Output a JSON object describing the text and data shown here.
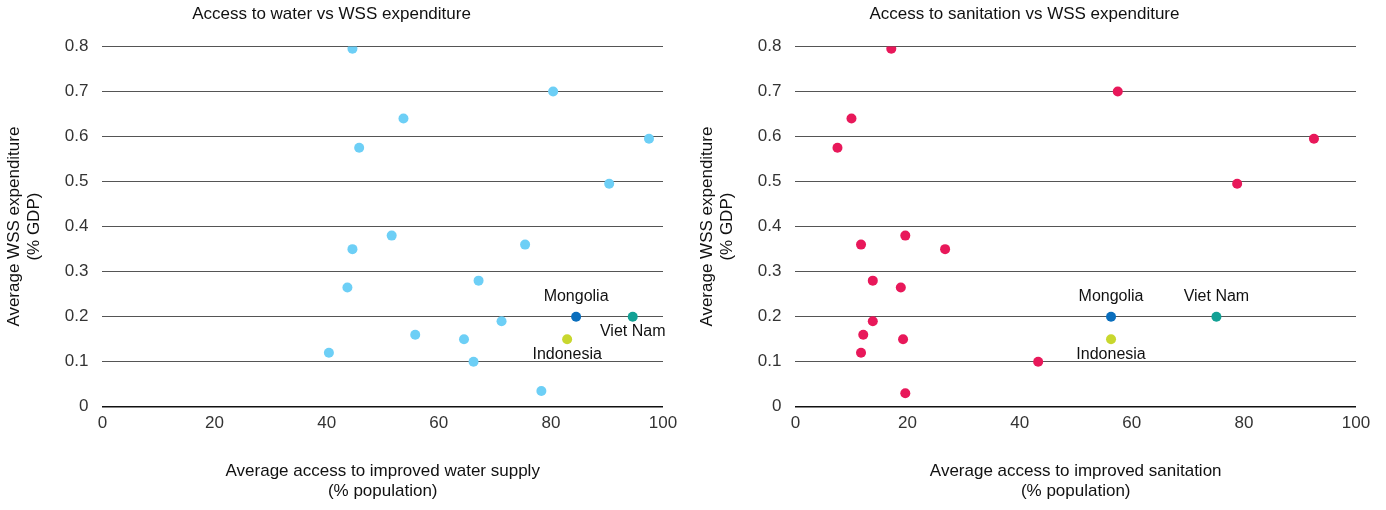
{
  "chart_data": [
    {
      "type": "scatter",
      "title": "Access to water vs WSS expenditure",
      "xlabel": "Average access to improved water supply\n(% population)",
      "ylabel": "Average WSS expenditure\n(% GDP)",
      "xlim": [
        0,
        100
      ],
      "xticks": [
        0,
        20,
        40,
        60,
        80,
        100
      ],
      "ylim": [
        0,
        0.8
      ],
      "yticks": [
        0,
        0.1,
        0.2,
        0.3,
        0.4,
        0.5,
        0.6,
        0.7,
        0.8
      ],
      "grid": "y",
      "legend": false,
      "marker": "circle",
      "series": [
        {
          "color": "#6dcff6",
          "x": [
            44.6,
            80.4,
            53.7,
            97.5,
            45.8,
            90.4,
            51.6,
            75.4,
            44.6,
            67.1,
            43.7,
            71.2,
            55.8,
            64.5,
            40.4,
            66.2,
            78.3
          ],
          "values": [
            0.795,
            0.7,
            0.64,
            0.595,
            0.575,
            0.495,
            0.38,
            0.36,
            0.35,
            0.28,
            0.265,
            0.19,
            0.16,
            0.15,
            0.12,
            0.1,
            0.035
          ]
        },
        {
          "name": "Mongolia",
          "color": "#0a6ebd",
          "x": [
            84.5
          ],
          "values": [
            0.2
          ]
        },
        {
          "name": "Viet Nam",
          "color": "#12a195",
          "x": [
            94.6
          ],
          "values": [
            0.2
          ]
        },
        {
          "name": "Indonesia",
          "color": "#c8d72e",
          "x": [
            82.9
          ],
          "values": [
            0.15
          ]
        }
      ]
    },
    {
      "type": "scatter",
      "title": "Access to sanitation vs WSS expenditure",
      "xlabel": "Average access to improved sanitation\n(% population)",
      "ylabel": "Average WSS expenditure\n(% GDP)",
      "xlim": [
        0,
        100
      ],
      "xticks": [
        0,
        20,
        40,
        60,
        80,
        100
      ],
      "ylim": [
        0,
        0.8
      ],
      "yticks": [
        0,
        0.1,
        0.2,
        0.3,
        0.4,
        0.5,
        0.6,
        0.7,
        0.8
      ],
      "grid": "y",
      "legend": false,
      "marker": "circle",
      "series": [
        {
          "color": "#e8185a",
          "x": [
            17.1,
            57.5,
            10.0,
            92.5,
            7.5,
            78.8,
            19.6,
            11.7,
            26.7,
            13.8,
            18.8,
            13.8,
            12.1,
            19.2,
            11.7,
            43.3,
            19.6
          ],
          "values": [
            0.795,
            0.7,
            0.64,
            0.595,
            0.575,
            0.495,
            0.38,
            0.36,
            0.35,
            0.28,
            0.265,
            0.19,
            0.16,
            0.15,
            0.12,
            0.1,
            0.03
          ]
        },
        {
          "name": "Mongolia",
          "color": "#0a6ebd",
          "x": [
            56.3
          ],
          "values": [
            0.2
          ]
        },
        {
          "name": "Viet Nam",
          "color": "#12a195",
          "x": [
            75.1
          ],
          "values": [
            0.2
          ]
        },
        {
          "name": "Indonesia",
          "color": "#c8d72e",
          "x": [
            56.3
          ],
          "values": [
            0.15
          ]
        }
      ]
    }
  ]
}
